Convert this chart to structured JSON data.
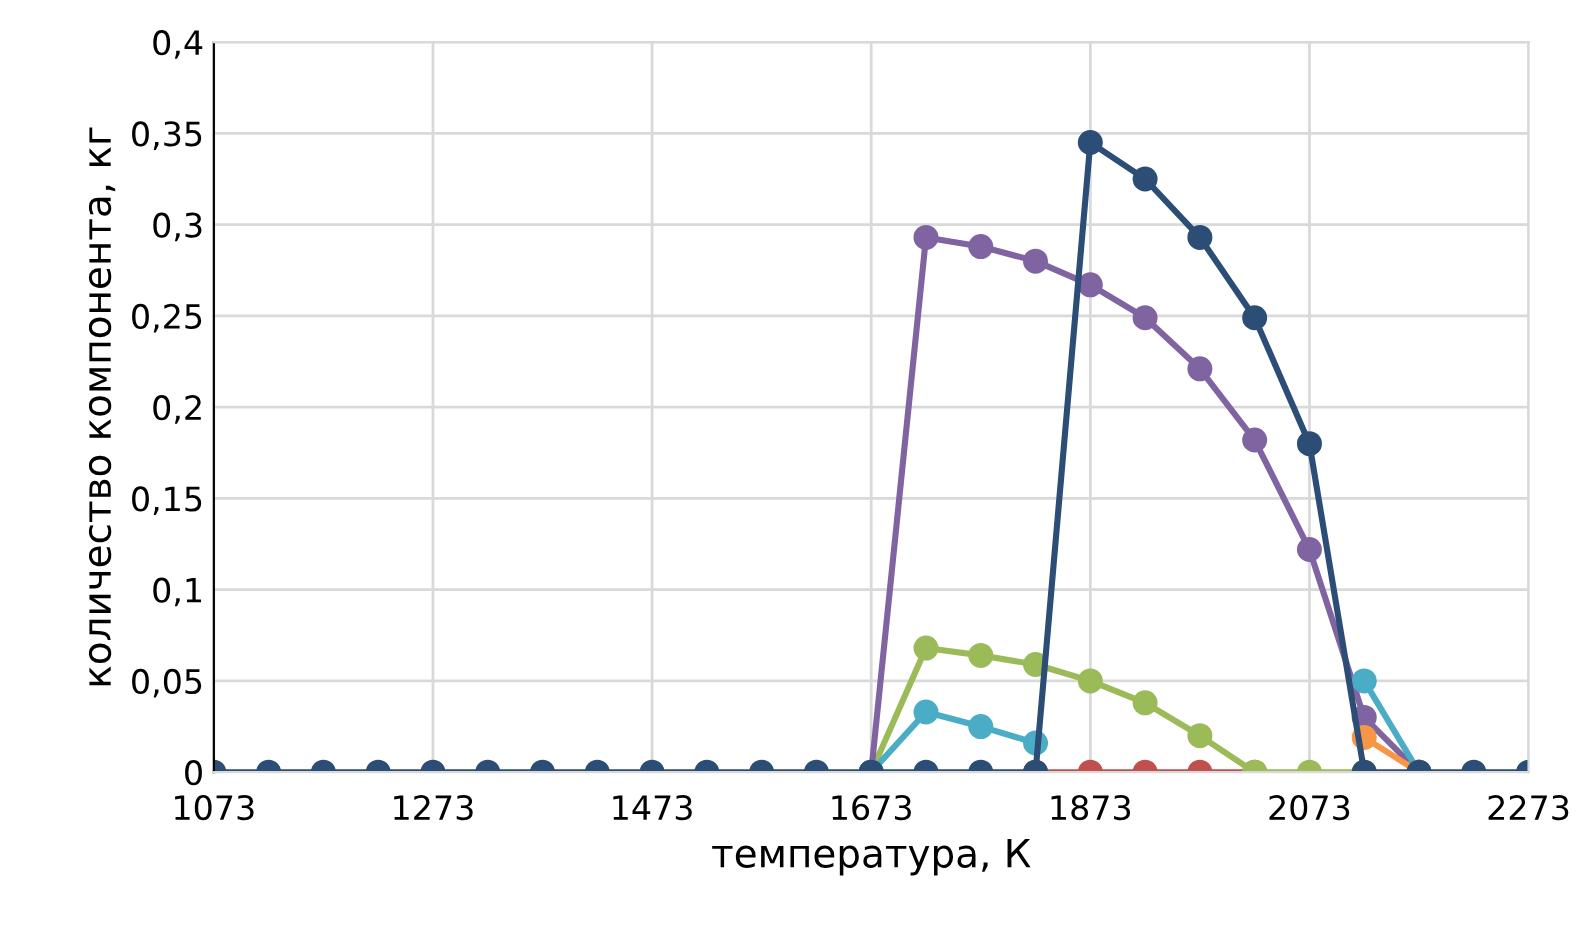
{
  "chart_data": {
    "type": "line",
    "xlabel": "температура, К",
    "ylabel": "количество компонента, кг",
    "x": [
      1073,
      1123,
      1173,
      1223,
      1273,
      1323,
      1373,
      1423,
      1473,
      1523,
      1573,
      1623,
      1673,
      1723,
      1773,
      1823,
      1873,
      1923,
      1973,
      2023,
      2073,
      2123,
      2173,
      2223,
      2273
    ],
    "series": [
      {
        "color": "#c0504d",
        "values": [
          null,
          null,
          null,
          null,
          null,
          null,
          null,
          null,
          null,
          null,
          null,
          null,
          null,
          null,
          null,
          0,
          0,
          0,
          0,
          0,
          null,
          null,
          null,
          null,
          null
        ]
      },
      {
        "color": "#9bbb59",
        "values": [
          null,
          null,
          null,
          null,
          null,
          null,
          null,
          null,
          null,
          null,
          null,
          null,
          0,
          0.068,
          0.064,
          0.059,
          0.05,
          0.038,
          0.02,
          0,
          0,
          0,
          null,
          null,
          null
        ]
      },
      {
        "color": "#8064a2",
        "values": [
          null,
          null,
          null,
          null,
          null,
          null,
          null,
          null,
          null,
          null,
          null,
          null,
          0,
          0.293,
          0.288,
          0.28,
          0.267,
          0.249,
          0.221,
          0.182,
          0.122,
          0.03,
          0,
          null,
          null
        ]
      },
      {
        "color": "#4bacc6",
        "values": [
          null,
          null,
          null,
          null,
          null,
          null,
          null,
          null,
          null,
          null,
          null,
          null,
          0,
          0.033,
          0.025,
          0.016,
          null,
          null,
          null,
          null,
          null,
          0.05,
          0,
          null,
          null
        ]
      },
      {
        "color": "#f79646",
        "values": [
          null,
          null,
          null,
          null,
          null,
          null,
          null,
          null,
          null,
          null,
          null,
          null,
          null,
          null,
          null,
          null,
          null,
          null,
          null,
          null,
          null,
          0.019,
          0,
          null,
          null
        ]
      },
      {
        "color": "#2c4d75",
        "values": [
          0,
          0,
          0,
          0,
          0,
          0,
          0,
          0,
          0,
          0,
          0,
          0,
          0,
          0,
          0,
          0,
          0.345,
          0.325,
          0.293,
          0.249,
          0.18,
          0,
          0,
          0,
          0
        ]
      }
    ],
    "xlim": [
      1073,
      2273
    ],
    "xticks": [
      1073,
      1273,
      1473,
      1673,
      1873,
      2073,
      2273
    ],
    "ylim": [
      0,
      0.4
    ],
    "yticks": [
      0,
      {
        "value": 0.05,
        "label": "0,05"
      },
      {
        "value": 0.1,
        "label": "0,1"
      },
      {
        "value": 0.15,
        "label": "0,15"
      },
      {
        "value": 0.2,
        "label": "0,2"
      },
      {
        "value": 0.25,
        "label": "0,25"
      },
      {
        "value": 0.3,
        "label": "0,3"
      },
      {
        "value": 0.35,
        "label": "0,35"
      },
      {
        "value": 0.4,
        "label": "0,4"
      }
    ],
    "grid": true,
    "legend": false,
    "marker": "circle",
    "line_style": "solid"
  }
}
